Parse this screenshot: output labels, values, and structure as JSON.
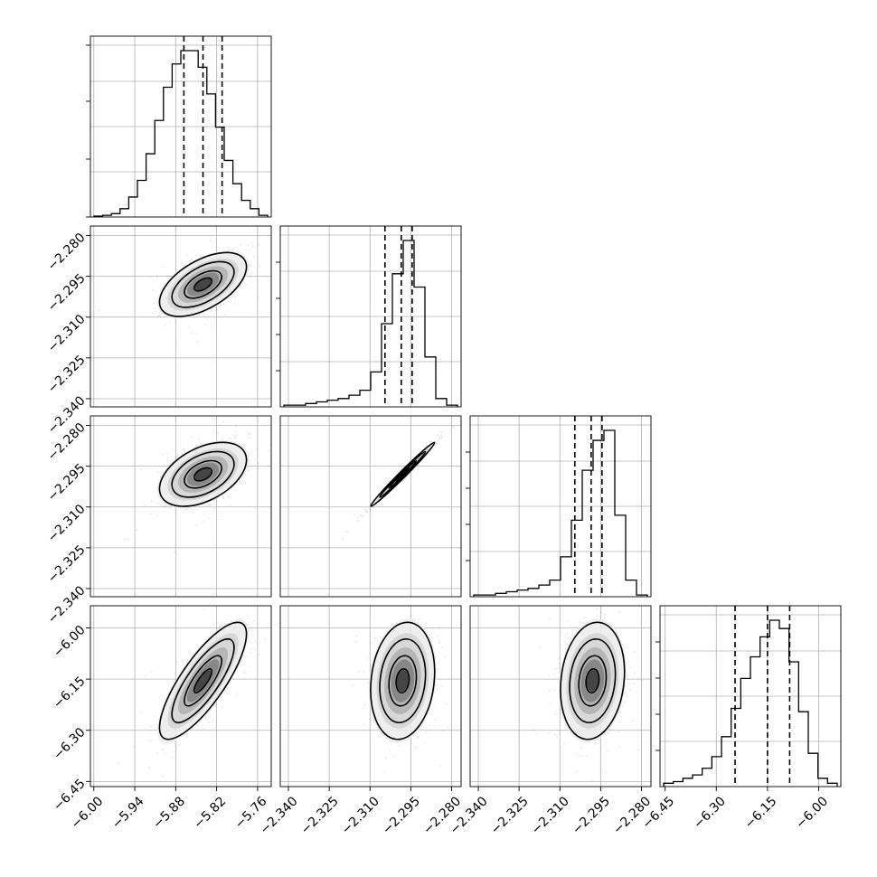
{
  "chart_data": {
    "type": "corner",
    "parameters": [
      {
        "mean": -5.84,
        "std": 0.026,
        "ticks": [
          -6.0,
          -5.94,
          -5.88,
          -5.82,
          -5.76
        ],
        "tick_labels": [
          "−6.00",
          "−5.94",
          "−5.88",
          "−5.82",
          "−5.76"
        ],
        "range": [
          -6.005,
          -5.74
        ],
        "quantiles": [
          -5.868,
          -5.84,
          -5.812
        ]
      },
      {
        "mean": -2.298,
        "std": 0.0048,
        "ticks": [
          -2.34,
          -2.325,
          -2.31,
          -2.295,
          -2.28
        ],
        "tick_labels": [
          "−2.340",
          "−2.325",
          "−2.310",
          "−2.295",
          "−2.280"
        ],
        "range": [
          -2.343,
          -2.2765
        ],
        "quantiles": [
          -2.3045,
          -2.2985,
          -2.2945
        ]
      },
      {
        "mean": -2.298,
        "std": 0.0048,
        "ticks": [
          -2.34,
          -2.325,
          -2.31,
          -2.295,
          -2.28
        ],
        "tick_labels": [
          "−2.340",
          "−2.325",
          "−2.310",
          "−2.295",
          "−2.280"
        ],
        "range": [
          -2.343,
          -2.2765
        ],
        "quantiles": [
          -2.3045,
          -2.2985,
          -2.2945
        ]
      },
      {
        "mean": -6.155,
        "std": 0.07,
        "ticks": [
          -6.45,
          -6.3,
          -6.15,
          -6.0
        ],
        "tick_labels": [
          "−6.45",
          "−6.30",
          "−6.15",
          "−6.00"
        ],
        "range": [
          -6.465,
          -5.935
        ],
        "quantiles": [
          -6.245,
          -6.15,
          -6.085
        ]
      }
    ],
    "diagonal_histograms": [
      [
        0.005,
        0.01,
        0.02,
        0.05,
        0.12,
        0.22,
        0.38,
        0.58,
        0.78,
        0.92,
        1.0,
        1.0,
        0.9,
        0.74,
        0.54,
        0.34,
        0.2,
        0.1,
        0.05,
        0.01
      ],
      [
        0.01,
        0.01,
        0.02,
        0.03,
        0.04,
        0.05,
        0.07,
        0.1,
        0.21,
        0.5,
        0.8,
        1.0,
        0.72,
        0.3,
        0.05,
        0.01
      ],
      [
        0.01,
        0.01,
        0.02,
        0.03,
        0.04,
        0.05,
        0.07,
        0.1,
        0.24,
        0.46,
        0.76,
        0.94,
        1.0,
        0.49,
        0.1,
        0.01
      ],
      [
        0.02,
        0.03,
        0.05,
        0.07,
        0.11,
        0.18,
        0.3,
        0.47,
        0.65,
        0.78,
        0.9,
        1.0,
        0.95,
        0.75,
        0.45,
        0.2,
        0.05,
        0.02
      ]
    ],
    "correlations": {
      "1-0": 0.55,
      "2-0": 0.45,
      "2-1": 0.99,
      "3-0": 0.8,
      "3-1": 0.15,
      "3-2": 0.15
    },
    "grid": true
  }
}
